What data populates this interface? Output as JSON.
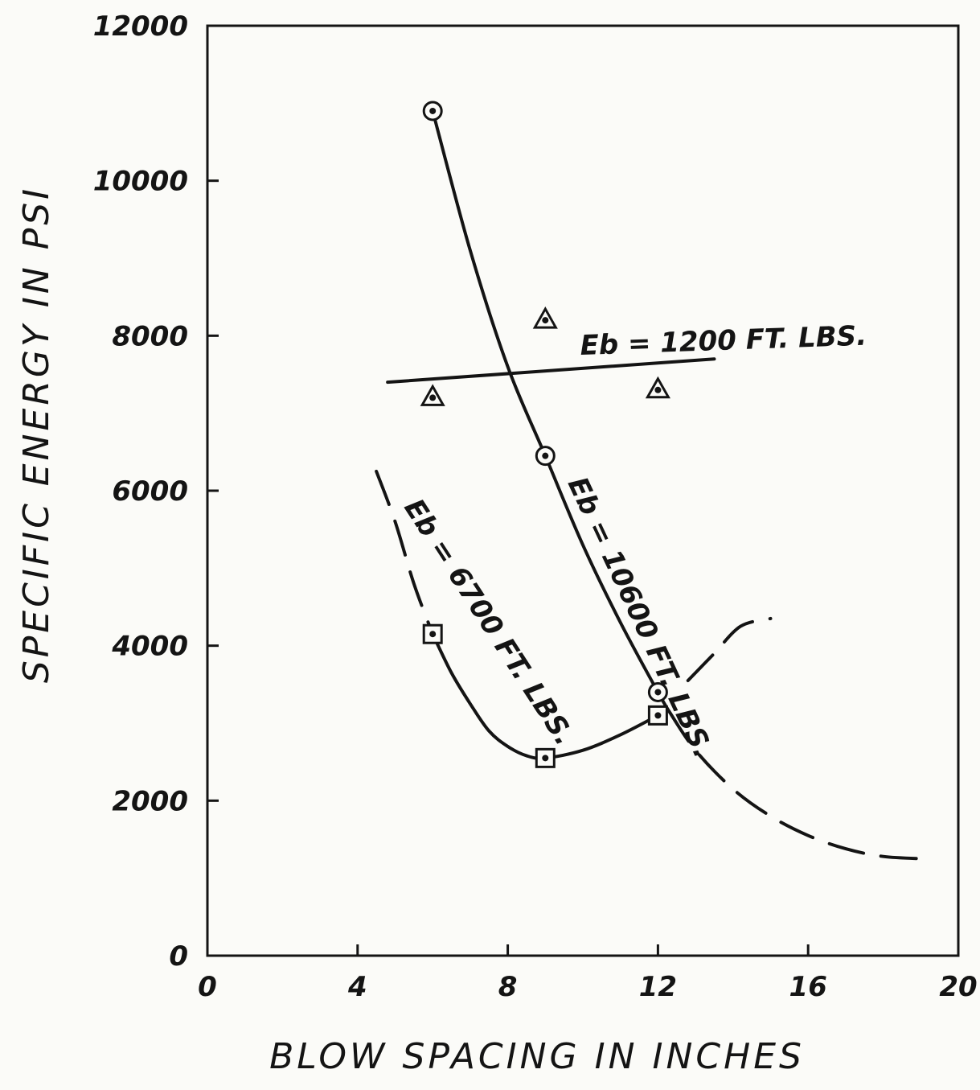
{
  "chart_data": {
    "type": "scatter",
    "title": "",
    "xlabel": "BLOW SPACING IN INCHES",
    "ylabel": "SPECIFIC ENERGY IN PSI",
    "xlim": [
      0,
      20
    ],
    "ylim": [
      0,
      12000
    ],
    "xticks": [
      "0",
      "4",
      "8",
      "12",
      "16",
      "20"
    ],
    "yticks": [
      "0",
      "2000",
      "4000",
      "6000",
      "8000",
      "10000",
      "12000"
    ],
    "grid": false,
    "legend": "none",
    "series": [
      {
        "name": "Eb = 10600 FT. LBS.",
        "marker": "circle",
        "points": [
          {
            "x": 6,
            "y": 10900
          },
          {
            "x": 9,
            "y": 6450
          },
          {
            "x": 12,
            "y": 3400
          }
        ],
        "curve": [
          [
            6,
            10900
          ],
          [
            7,
            9100
          ],
          [
            8,
            7600
          ],
          [
            9,
            6450
          ],
          [
            10,
            5300
          ],
          [
            11,
            4300
          ],
          [
            12,
            3400
          ],
          [
            12.3,
            3150
          ]
        ],
        "extrapolated": [
          [
            12.3,
            3150
          ],
          [
            13,
            2650
          ],
          [
            14,
            2150
          ],
          [
            15,
            1800
          ],
          [
            16,
            1550
          ],
          [
            17,
            1380
          ],
          [
            18,
            1280
          ],
          [
            19.1,
            1250
          ]
        ]
      },
      {
        "name": "Eb = 6700 FT. LBS.",
        "marker": "square",
        "points": [
          {
            "x": 6,
            "y": 4150
          },
          {
            "x": 9,
            "y": 2550
          },
          {
            "x": 12,
            "y": 3100
          }
        ],
        "curve": [
          [
            6,
            4150
          ],
          [
            6.5,
            3650
          ],
          [
            7,
            3250
          ],
          [
            7.5,
            2900
          ],
          [
            8,
            2700
          ],
          [
            8.5,
            2580
          ],
          [
            9,
            2550
          ],
          [
            10,
            2650
          ],
          [
            11,
            2850
          ],
          [
            12,
            3100
          ]
        ],
        "extrapolated_left": [
          [
            4.5,
            6250
          ],
          [
            5,
            5600
          ],
          [
            5.5,
            4800
          ],
          [
            6,
            4150
          ]
        ],
        "extrapolated_right": [
          [
            12.8,
            3550
          ],
          [
            13.5,
            3900
          ],
          [
            14.2,
            4250
          ],
          [
            15,
            4350
          ]
        ]
      },
      {
        "name": "Eb = 1200 FT. LBS.",
        "marker": "triangle",
        "points": [
          {
            "x": 6,
            "y": 7200
          },
          {
            "x": 9,
            "y": 8200
          },
          {
            "x": 12,
            "y": 7300
          }
        ],
        "curve": [
          [
            4.8,
            7400
          ],
          [
            13.5,
            7700
          ]
        ]
      }
    ],
    "annotations": [
      {
        "text": "Eb = 1200 FT. LBS.",
        "series": "Eb = 1200 FT. LBS."
      },
      {
        "text": "Eb = 10600 FT. LBS.",
        "series": "Eb = 10600 FT. LBS."
      },
      {
        "text": "Eb = 6700 FT. LBS.",
        "series": "Eb = 6700 FT. LBS."
      }
    ],
    "colors": {
      "ink": "#141414",
      "paper": "#fbfbf8"
    }
  }
}
